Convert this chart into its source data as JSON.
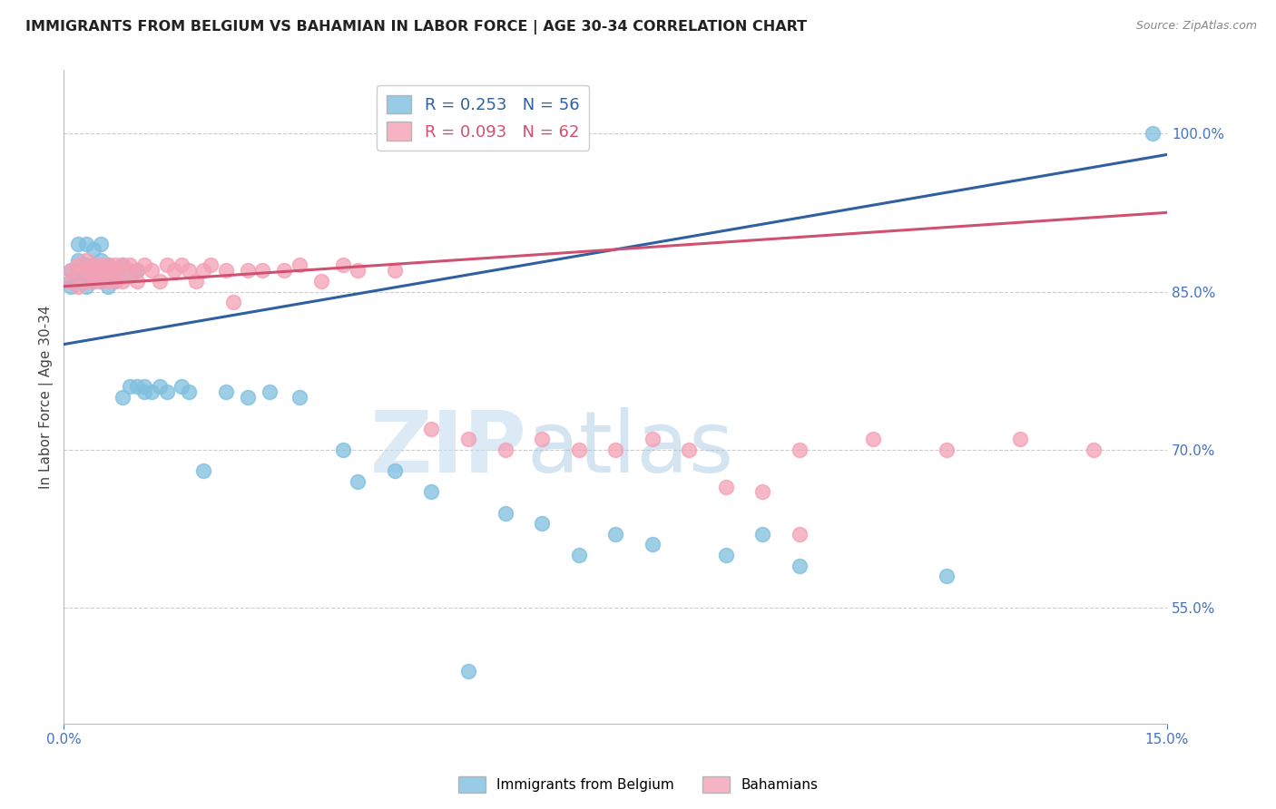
{
  "title": "IMMIGRANTS FROM BELGIUM VS BAHAMIAN IN LABOR FORCE | AGE 30-34 CORRELATION CHART",
  "source": "Source: ZipAtlas.com",
  "ylabel": "In Labor Force | Age 30-34",
  "right_yticks": [
    55.0,
    70.0,
    85.0,
    100.0
  ],
  "legend1_r": "0.253",
  "legend1_n": "56",
  "legend2_r": "0.093",
  "legend2_n": "62",
  "legend1_label": "Immigrants from Belgium",
  "legend2_label": "Bahamians",
  "blue_color": "#7fbfdf",
  "pink_color": "#f4a0b5",
  "blue_line_color": "#3060a0",
  "pink_line_color": "#d05070",
  "watermark_zip": "ZIP",
  "watermark_atlas": "atlas",
  "xlim": [
    0.0,
    0.15
  ],
  "ylim": [
    0.44,
    1.06
  ],
  "grid_color": "#cccccc",
  "title_color": "#222222",
  "axis_color": "#4472c4",
  "blue_scatter_x": [
    0.001,
    0.001,
    0.001,
    0.002,
    0.002,
    0.002,
    0.002,
    0.003,
    0.003,
    0.003,
    0.003,
    0.004,
    0.004,
    0.004,
    0.005,
    0.005,
    0.005,
    0.005,
    0.006,
    0.006,
    0.006,
    0.007,
    0.007,
    0.008,
    0.008,
    0.009,
    0.009,
    0.01,
    0.01,
    0.011,
    0.011,
    0.012,
    0.013,
    0.014,
    0.016,
    0.017,
    0.019,
    0.022,
    0.025,
    0.028,
    0.032,
    0.038,
    0.04,
    0.045,
    0.05,
    0.055,
    0.06,
    0.065,
    0.07,
    0.075,
    0.08,
    0.09,
    0.095,
    0.1,
    0.12,
    0.148
  ],
  "blue_scatter_y": [
    0.87,
    0.86,
    0.855,
    0.895,
    0.88,
    0.87,
    0.862,
    0.895,
    0.875,
    0.865,
    0.855,
    0.89,
    0.875,
    0.86,
    0.895,
    0.88,
    0.87,
    0.86,
    0.875,
    0.865,
    0.855,
    0.87,
    0.86,
    0.875,
    0.75,
    0.865,
    0.76,
    0.87,
    0.76,
    0.755,
    0.76,
    0.755,
    0.76,
    0.755,
    0.76,
    0.755,
    0.68,
    0.755,
    0.75,
    0.755,
    0.75,
    0.7,
    0.67,
    0.68,
    0.66,
    0.49,
    0.64,
    0.63,
    0.6,
    0.62,
    0.61,
    0.6,
    0.62,
    0.59,
    0.58,
    1.0
  ],
  "pink_scatter_x": [
    0.001,
    0.001,
    0.002,
    0.002,
    0.002,
    0.003,
    0.003,
    0.003,
    0.004,
    0.004,
    0.004,
    0.005,
    0.005,
    0.005,
    0.006,
    0.006,
    0.006,
    0.007,
    0.007,
    0.007,
    0.008,
    0.008,
    0.009,
    0.009,
    0.01,
    0.01,
    0.011,
    0.012,
    0.013,
    0.014,
    0.015,
    0.016,
    0.017,
    0.018,
    0.019,
    0.02,
    0.022,
    0.023,
    0.025,
    0.027,
    0.03,
    0.032,
    0.035,
    0.038,
    0.04,
    0.045,
    0.05,
    0.055,
    0.06,
    0.065,
    0.07,
    0.075,
    0.08,
    0.085,
    0.09,
    0.095,
    0.1,
    0.11,
    0.12,
    0.13,
    0.14,
    0.1
  ],
  "pink_scatter_y": [
    0.87,
    0.86,
    0.875,
    0.87,
    0.855,
    0.88,
    0.87,
    0.86,
    0.875,
    0.87,
    0.86,
    0.875,
    0.87,
    0.86,
    0.875,
    0.87,
    0.86,
    0.875,
    0.87,
    0.86,
    0.875,
    0.86,
    0.875,
    0.87,
    0.87,
    0.86,
    0.875,
    0.87,
    0.86,
    0.875,
    0.87,
    0.875,
    0.87,
    0.86,
    0.87,
    0.875,
    0.87,
    0.84,
    0.87,
    0.87,
    0.87,
    0.875,
    0.86,
    0.875,
    0.87,
    0.87,
    0.72,
    0.71,
    0.7,
    0.71,
    0.7,
    0.7,
    0.71,
    0.7,
    0.665,
    0.66,
    0.7,
    0.71,
    0.7,
    0.71,
    0.7,
    0.62
  ],
  "blue_trend_x": [
    0.0,
    0.15
  ],
  "blue_trend_y": [
    0.8,
    0.98
  ],
  "pink_trend_x": [
    0.0,
    0.15
  ],
  "pink_trend_y": [
    0.855,
    0.925
  ]
}
